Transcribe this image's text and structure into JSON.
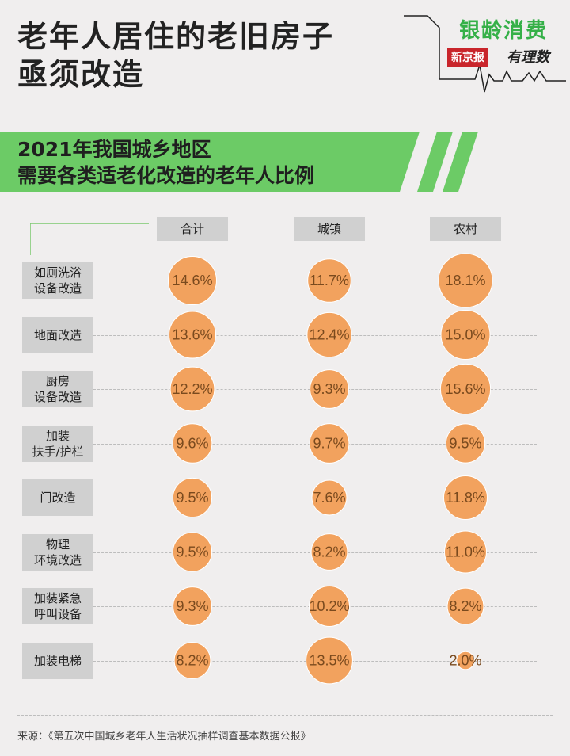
{
  "header": {
    "title_line1": "老年人居住的老旧房子",
    "title_line2": "亟须改造",
    "brand_name": "银龄消费",
    "brand_paper": "新京报",
    "brand_column": "有理数"
  },
  "colors": {
    "bubble": "#f2a25e",
    "bubble_stroke": "#ffffff",
    "bubble_text": "#7a4a1e",
    "banner": "#6ccb66",
    "brand_green": "#35b048",
    "brand_red": "#c9252b"
  },
  "chart_data": {
    "type": "bubble-matrix",
    "title_line1": "2021年我国城乡地区",
    "title_line2": "需要各类适老化改造的老年人比例",
    "columns": [
      "合计",
      "城镇",
      "农村"
    ],
    "rows": [
      {
        "label": [
          "如厕洗浴",
          "设备改造"
        ],
        "values": [
          14.6,
          11.7,
          18.1
        ],
        "texts": [
          "14.6%",
          "11.7%",
          "18.1%"
        ]
      },
      {
        "label": [
          "地面改造"
        ],
        "values": [
          13.6,
          12.4,
          15.0
        ],
        "texts": [
          "13.6%",
          "12.4%",
          "15.0%"
        ]
      },
      {
        "label": [
          "厨房",
          "设备改造"
        ],
        "values": [
          12.2,
          9.3,
          15.6
        ],
        "texts": [
          "12.2%",
          "9.3%",
          "15.6%"
        ]
      },
      {
        "label": [
          "加装",
          "扶手/护栏"
        ],
        "values": [
          9.6,
          9.7,
          9.5
        ],
        "texts": [
          "9.6%",
          "9.7%",
          "9.5%"
        ]
      },
      {
        "label": [
          "门改造"
        ],
        "values": [
          9.5,
          7.6,
          11.8
        ],
        "texts": [
          "9.5%",
          "7.6%",
          "11.8%"
        ]
      },
      {
        "label": [
          "物理",
          "环境改造"
        ],
        "values": [
          9.5,
          8.2,
          11.0
        ],
        "texts": [
          "9.5%",
          "8.2%",
          "11.0%"
        ]
      },
      {
        "label": [
          "加装紧急",
          "呼叫设备"
        ],
        "values": [
          9.3,
          10.2,
          8.2
        ],
        "texts": [
          "9.3%",
          "10.2%",
          "8.2%"
        ]
      },
      {
        "label": [
          "加装电梯"
        ],
        "values": [
          8.2,
          13.5,
          2.0
        ],
        "texts": [
          "8.2%",
          "13.5%",
          "2.0%"
        ]
      }
    ],
    "unit": "%"
  },
  "footer": {
    "source": "来源：《第五次中国城乡老年人生活状况抽样调查基本数据公报》"
  }
}
